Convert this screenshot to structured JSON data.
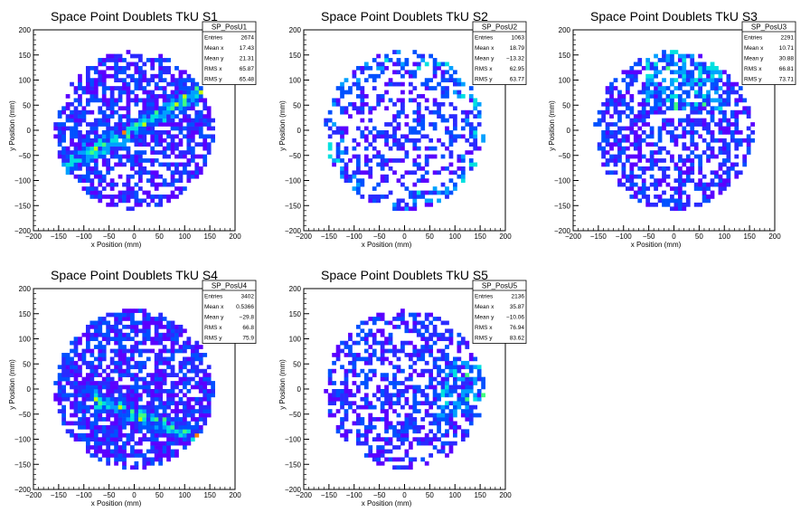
{
  "chart_data": [
    {
      "type": "heatmap",
      "title": "Space Point Doublets TkU S1",
      "xlabel": "x Position (mm)",
      "ylabel": "y Position (mm)",
      "xlim": [
        -200,
        200
      ],
      "ylim": [
        -200,
        200
      ],
      "xticks": [
        "−200",
        "−150",
        "−100",
        "−50",
        "0",
        "50",
        "100",
        "150",
        "200"
      ],
      "yticks": [
        "200",
        "150",
        "100",
        "50",
        "0",
        "−50",
        "−100",
        "−150",
        "−200"
      ],
      "stats": {
        "name": "SP_PosU1",
        "rows": [
          [
            "Entries",
            "2674"
          ],
          [
            "Mean x",
            "17.43"
          ],
          [
            "Mean y",
            "21.31"
          ],
          [
            "RMS x",
            "65.87"
          ],
          [
            "RMS y",
            "65.48"
          ]
        ]
      },
      "seed": 11,
      "density": 0.62,
      "band": "diag-up"
    },
    {
      "type": "heatmap",
      "title": "Space Point Doublets TkU S2",
      "xlabel": "x Position (mm)",
      "ylabel": "y Position (mm)",
      "xlim": [
        -200,
        200
      ],
      "ylim": [
        -200,
        200
      ],
      "xticks": [
        "−200",
        "−150",
        "−100",
        "−50",
        "0",
        "50",
        "100",
        "150",
        "200"
      ],
      "yticks": [
        "200",
        "150",
        "100",
        "50",
        "0",
        "−50",
        "−100",
        "−150",
        "−200"
      ],
      "stats": {
        "name": "SP_PosU2",
        "rows": [
          [
            "Entries",
            "1063"
          ],
          [
            "Mean x",
            "18.79"
          ],
          [
            "Mean y",
            "−13.32"
          ],
          [
            "RMS x",
            "62.95"
          ],
          [
            "RMS y",
            "63.77"
          ]
        ]
      },
      "seed": 23,
      "density": 0.38,
      "band": "ring"
    },
    {
      "type": "heatmap",
      "title": "Space Point Doublets TkU S3",
      "xlabel": "x Position (mm)",
      "ylabel": "y Position (mm)",
      "xlim": [
        -200,
        200
      ],
      "ylim": [
        -200,
        200
      ],
      "xticks": [
        "−200",
        "−150",
        "−100",
        "−50",
        "0",
        "50",
        "100",
        "150",
        "200"
      ],
      "yticks": [
        "200",
        "150",
        "100",
        "50",
        "0",
        "−50",
        "−100",
        "−150",
        "−200"
      ],
      "stats": {
        "name": "SP_PosU3",
        "rows": [
          [
            "Entries",
            "2291"
          ],
          [
            "Mean x",
            "10.71"
          ],
          [
            "Mean y",
            "30.88"
          ],
          [
            "RMS x",
            "66.81"
          ],
          [
            "RMS y",
            "73.71"
          ]
        ]
      },
      "seed": 37,
      "density": 0.55,
      "band": "upper"
    },
    {
      "type": "heatmap",
      "title": "Space Point Doublets TkU S4",
      "xlabel": "x Position (mm)",
      "ylabel": "y Position (mm)",
      "xlim": [
        -200,
        200
      ],
      "ylim": [
        -200,
        200
      ],
      "xticks": [
        "−200",
        "−150",
        "−100",
        "−50",
        "0",
        "50",
        "100",
        "150",
        "200"
      ],
      "yticks": [
        "200",
        "150",
        "100",
        "50",
        "0",
        "−50",
        "−100",
        "−150",
        "−200"
      ],
      "stats": {
        "name": "SP_PosU4",
        "rows": [
          [
            "Entries",
            "3402"
          ],
          [
            "Mean x",
            "0.5366"
          ],
          [
            "Mean y",
            "−29.8"
          ],
          [
            "RMS x",
            "66.8"
          ],
          [
            "RMS y",
            "75.9"
          ]
        ]
      },
      "seed": 51,
      "density": 0.72,
      "band": "diag-down"
    },
    {
      "type": "heatmap",
      "title": "Space Point Doublets TkU S5",
      "xlabel": "x Position (mm)",
      "ylabel": "y Position (mm)",
      "xlim": [
        -200,
        200
      ],
      "ylim": [
        -200,
        200
      ],
      "xticks": [
        "−200",
        "−150",
        "−100",
        "−50",
        "0",
        "50",
        "100",
        "150",
        "200"
      ],
      "yticks": [
        "200",
        "150",
        "100",
        "50",
        "0",
        "−50",
        "−100",
        "−150",
        "−200"
      ],
      "stats": {
        "name": "SP_PosU5",
        "rows": [
          [
            "Entries",
            "2136"
          ],
          [
            "Mean x",
            "35.87"
          ],
          [
            "Mean y",
            "−10.06"
          ],
          [
            "RMS x",
            "76.94"
          ],
          [
            "RMS y",
            "83.62"
          ]
        ]
      },
      "seed": 67,
      "density": 0.5,
      "band": "right"
    }
  ],
  "colors": {
    "frame": "#000000",
    "palette": [
      "#5a00ff",
      "#2a2aff",
      "#0050ff",
      "#00a0ff",
      "#00e0e0",
      "#40ff80",
      "#c0ff00",
      "#ff8000",
      "#ff0000"
    ]
  }
}
